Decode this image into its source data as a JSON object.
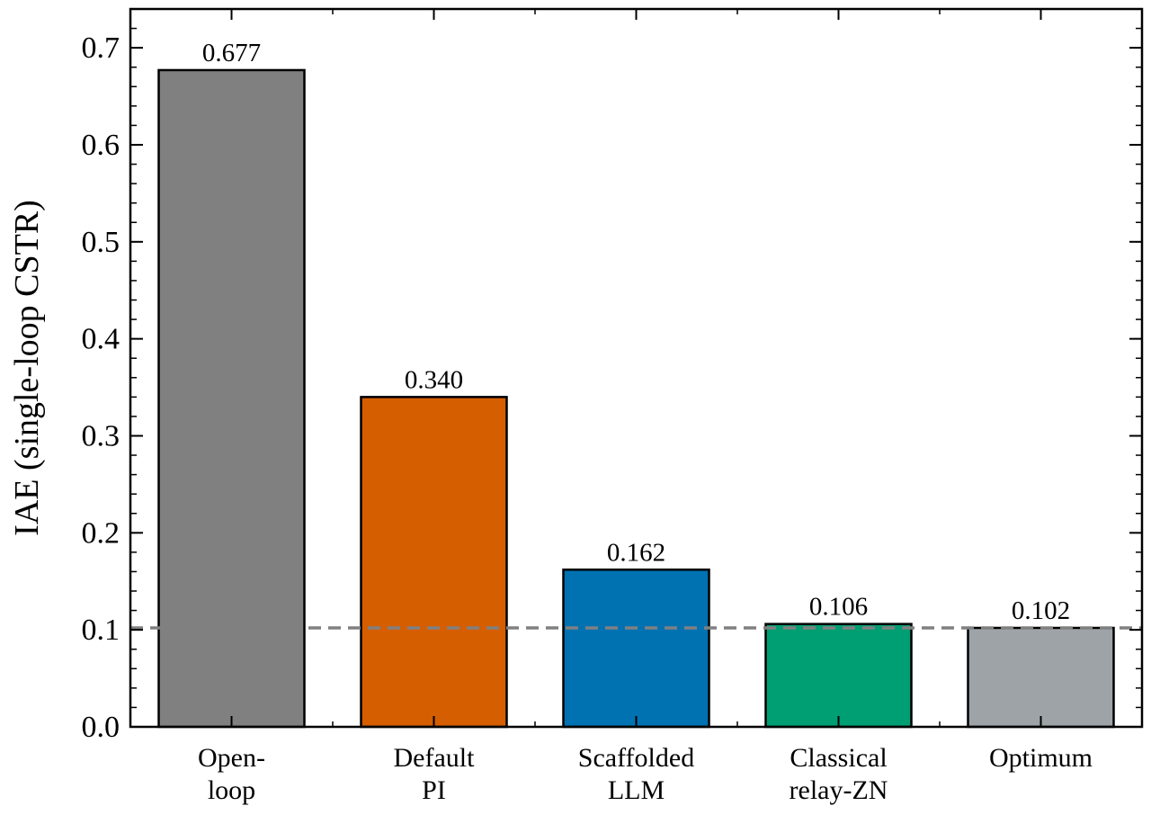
{
  "chart_data": {
    "type": "bar",
    "categories": [
      [
        "Open-",
        "loop"
      ],
      [
        "Default",
        "PI"
      ],
      [
        "Scaffolded",
        "LLM"
      ],
      [
        "Classical",
        "relay-ZN"
      ],
      [
        "Optimum"
      ]
    ],
    "values": [
      0.677,
      0.34,
      0.162,
      0.106,
      0.102
    ],
    "data_labels": [
      "0.677",
      "0.340",
      "0.162",
      "0.106",
      "0.102"
    ],
    "bar_colors": [
      "#808080",
      "#d55e00",
      "#0072b2",
      "#009e73",
      "#9ea3a8"
    ],
    "ylabel": "IAE (single-loop CSTR)",
    "xlabel": "",
    "title": "",
    "ylim": [
      0,
      0.74
    ],
    "yticks": [
      0.0,
      0.1,
      0.2,
      0.3,
      0.4,
      0.5,
      0.6,
      0.7
    ],
    "ytick_labels": [
      "0.0",
      "0.1",
      "0.2",
      "0.3",
      "0.4",
      "0.5",
      "0.6",
      "0.7"
    ],
    "reference_line": {
      "value": 0.102,
      "style": "dashed",
      "color": "#808080"
    },
    "grid": false,
    "legend": "none"
  }
}
